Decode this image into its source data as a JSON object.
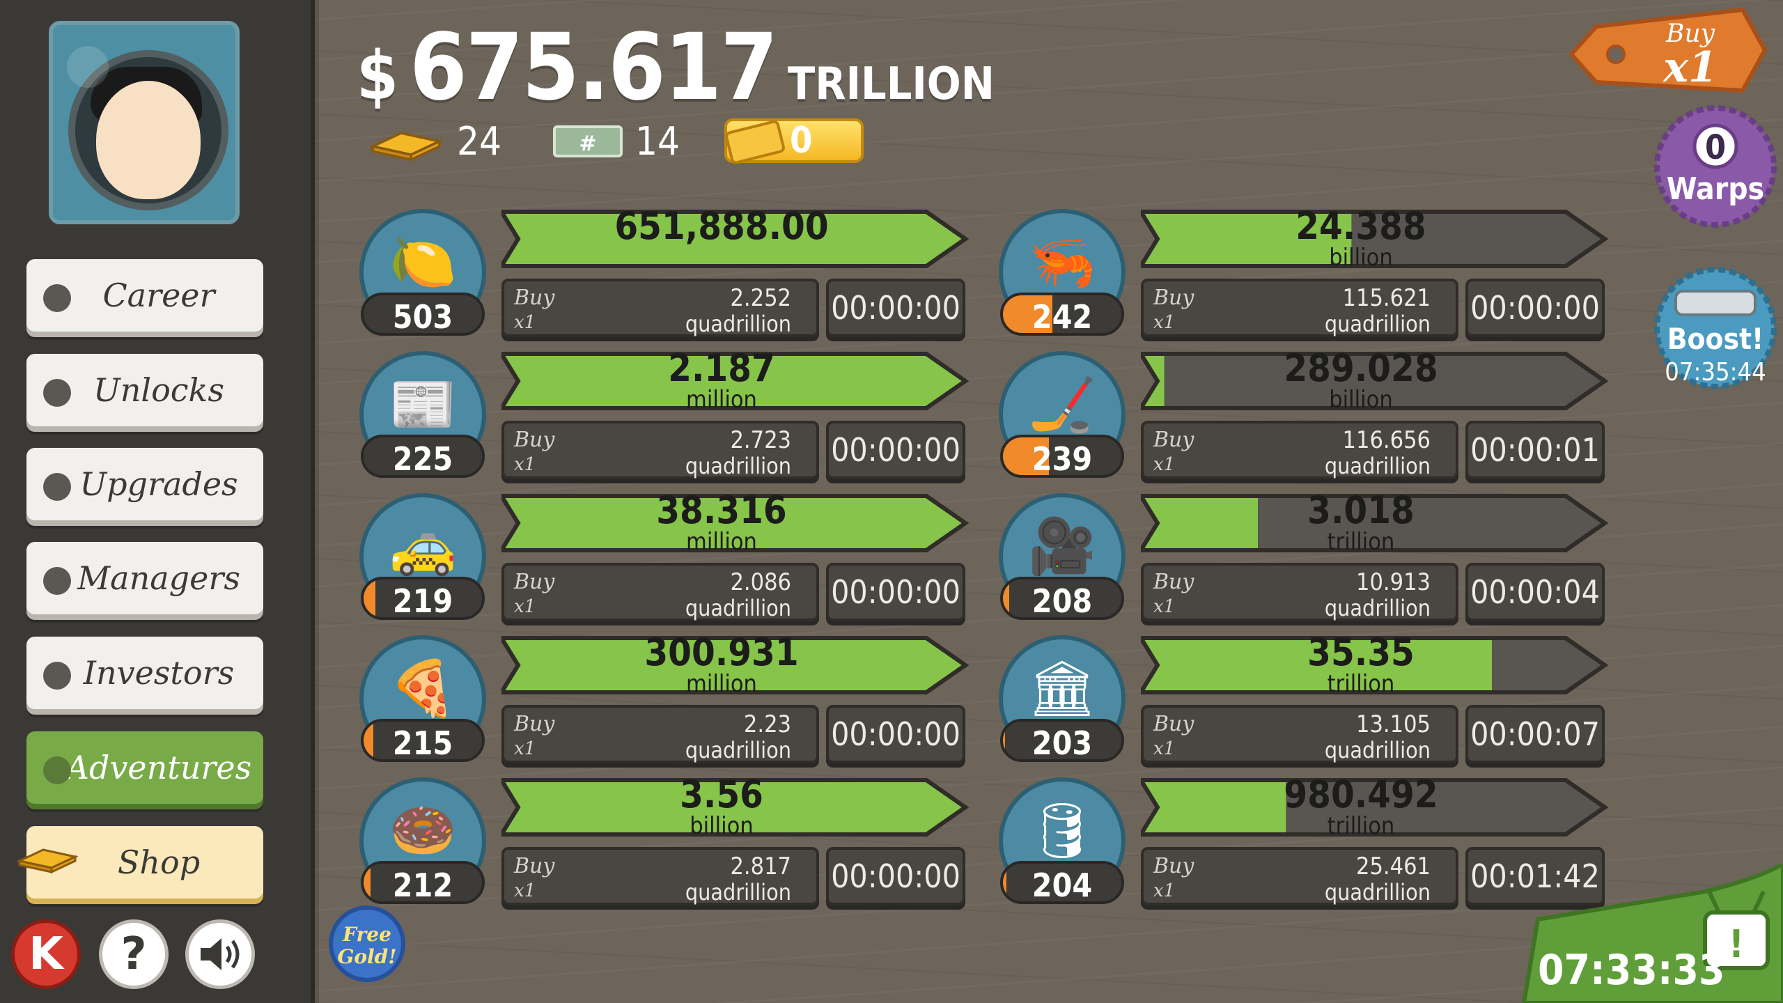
{
  "header": {
    "cash_sign": "$",
    "cash_amount": "675.617",
    "cash_unit": "TRILLION",
    "gold_count": "24",
    "megabucks_count": "14",
    "ticket_count": "0"
  },
  "sidebar": {
    "items": [
      {
        "label": "Career"
      },
      {
        "label": "Unlocks"
      },
      {
        "label": "Upgrades"
      },
      {
        "label": "Managers"
      },
      {
        "label": "Investors"
      },
      {
        "label": "Adventures"
      },
      {
        "label": "Shop"
      }
    ],
    "kong_label": "K",
    "help_label": "?"
  },
  "free_gold": {
    "line1": "Free",
    "line2": "Gold!"
  },
  "buy_tag": {
    "label": "Buy",
    "mult": "x1"
  },
  "warps": {
    "count": "0",
    "label": "Warps"
  },
  "boost": {
    "label": "Boost!",
    "time": "07:35:44"
  },
  "tv": {
    "time": "07:33:33",
    "badge": "!"
  },
  "businesses": [
    {
      "icon": "lemon-icon",
      "emoji": "🍋",
      "owned": "503",
      "owned_progress": 0.0,
      "value": "651,888.00",
      "value_unit": "",
      "progress": 1.0,
      "buy": "Buy",
      "mult": "x1",
      "cost": "2.252",
      "cost_unit": "quadrillion",
      "timer": "00:00:00"
    },
    {
      "icon": "newspaper-icon",
      "emoji": "📰",
      "owned": "225",
      "owned_progress": 0.0,
      "value": "2.187",
      "value_unit": "million",
      "progress": 1.0,
      "buy": "Buy",
      "mult": "x1",
      "cost": "2.723",
      "cost_unit": "quadrillion",
      "timer": "00:00:00"
    },
    {
      "icon": "car-wash-icon",
      "emoji": "🚕",
      "owned": "219",
      "owned_progress": 0.1,
      "value": "38.316",
      "value_unit": "million",
      "progress": 1.0,
      "buy": "Buy",
      "mult": "x1",
      "cost": "2.086",
      "cost_unit": "quadrillion",
      "timer": "00:00:00"
    },
    {
      "icon": "pizza-icon",
      "emoji": "🍕",
      "owned": "215",
      "owned_progress": 0.08,
      "value": "300.931",
      "value_unit": "million",
      "progress": 1.0,
      "buy": "Buy",
      "mult": "x1",
      "cost": "2.23",
      "cost_unit": "quadrillion",
      "timer": "00:00:00"
    },
    {
      "icon": "donut-icon",
      "emoji": "🍩",
      "owned": "212",
      "owned_progress": 0.06,
      "value": "3.56",
      "value_unit": "billion",
      "progress": 1.0,
      "buy": "Buy",
      "mult": "x1",
      "cost": "2.817",
      "cost_unit": "quadrillion",
      "timer": "00:00:00"
    },
    {
      "icon": "shrimp-icon",
      "emoji": "🦐",
      "owned": "242",
      "owned_progress": 0.42,
      "value": "24.388",
      "value_unit": "billion",
      "progress": 0.45,
      "buy": "Buy",
      "mult": "x1",
      "cost": "115.621",
      "cost_unit": "quadrillion",
      "timer": "00:00:00"
    },
    {
      "icon": "hockey-icon",
      "emoji": "🏒",
      "owned": "239",
      "owned_progress": 0.39,
      "value": "289.028",
      "value_unit": "billion",
      "progress": 0.05,
      "buy": "Buy",
      "mult": "x1",
      "cost": "116.656",
      "cost_unit": "quadrillion",
      "timer": "00:00:01"
    },
    {
      "icon": "movie-camera-icon",
      "emoji": "🎥",
      "owned": "208",
      "owned_progress": 0.05,
      "value": "3.018",
      "value_unit": "trillion",
      "progress": 0.25,
      "buy": "Buy",
      "mult": "x1",
      "cost": "10.913",
      "cost_unit": "quadrillion",
      "timer": "00:00:04"
    },
    {
      "icon": "bank-icon",
      "emoji": "🏛",
      "owned": "203",
      "owned_progress": 0.02,
      "value": "35.35",
      "value_unit": "trillion",
      "progress": 0.75,
      "buy": "Buy",
      "mult": "x1",
      "cost": "13.105",
      "cost_unit": "quadrillion",
      "timer": "00:00:07"
    },
    {
      "icon": "oil-rig-icon",
      "emoji": "🛢",
      "owned": "204",
      "owned_progress": 0.03,
      "value": "980.492",
      "value_unit": "trillion",
      "progress": 0.31,
      "buy": "Buy",
      "mult": "x1",
      "cost": "25.461",
      "cost_unit": "quadrillion",
      "timer": "00:01:42"
    }
  ]
}
